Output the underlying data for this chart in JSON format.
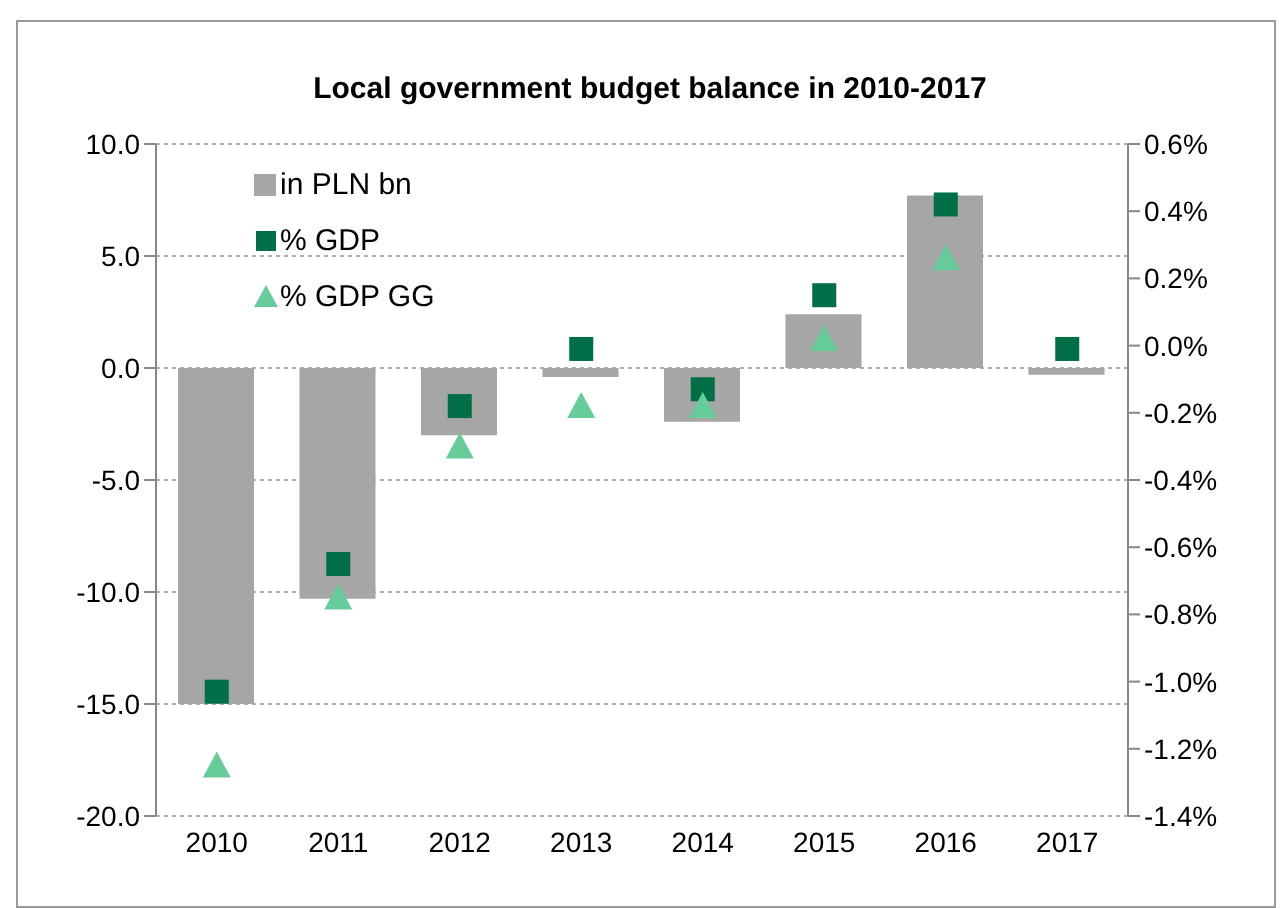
{
  "chart_data": {
    "type": "bar",
    "title": "Local government budget balance in 2010-2017",
    "categories": [
      "2010",
      "2011",
      "2012",
      "2013",
      "2014",
      "2015",
      "2016",
      "2017"
    ],
    "series": [
      {
        "name": "in PLN bn",
        "color": "#a6a6a6",
        "values": [
          -15.0,
          -10.3,
          -3.0,
          -0.4,
          -2.4,
          2.4,
          7.7,
          -0.3
        ]
      },
      {
        "name": "% GDP",
        "type": "scatter",
        "axis": "y2",
        "marker": "square",
        "color": "#006e46",
        "values": [
          -1.03,
          -0.65,
          -0.18,
          -0.01,
          -0.13,
          0.15,
          0.42,
          -0.01
        ]
      },
      {
        "name": "% GDP GG",
        "type": "scatter",
        "axis": "y2",
        "marker": "triangle",
        "color": "#66cc99",
        "values": [
          -1.25,
          -0.75,
          -0.3,
          -0.18,
          -0.18,
          0.02,
          0.26,
          null
        ]
      }
    ],
    "ylim": [
      -20,
      10
    ],
    "yticks": [
      {
        "value": -20,
        "label": "-20.0"
      },
      {
        "value": -15,
        "label": "-15.0"
      },
      {
        "value": -10,
        "label": "-10.0"
      },
      {
        "value": -5,
        "label": "-5.0"
      },
      {
        "value": 0,
        "label": "0.0"
      },
      {
        "value": 5,
        "label": "5.0"
      },
      {
        "value": 10,
        "label": "10.0"
      }
    ],
    "y2lim": [
      -1.4,
      0.6
    ],
    "y2ticks": [
      {
        "value": -1.4,
        "label": "-1.4%"
      },
      {
        "value": -1.2,
        "label": "-1.2%"
      },
      {
        "value": -1.0,
        "label": "-1.0%"
      },
      {
        "value": -0.8,
        "label": "-0.8%"
      },
      {
        "value": -0.6,
        "label": "-0.6%"
      },
      {
        "value": -0.4,
        "label": "-0.4%"
      },
      {
        "value": -0.2,
        "label": "-0.2%"
      },
      {
        "value": 0,
        "label": "0.0%"
      },
      {
        "value": 0.2,
        "label": "0.2%"
      },
      {
        "value": 0.4,
        "label": "0.4%"
      },
      {
        "value": 0.6,
        "label": "0.6%"
      }
    ],
    "grid": "y",
    "legend": "top left"
  }
}
